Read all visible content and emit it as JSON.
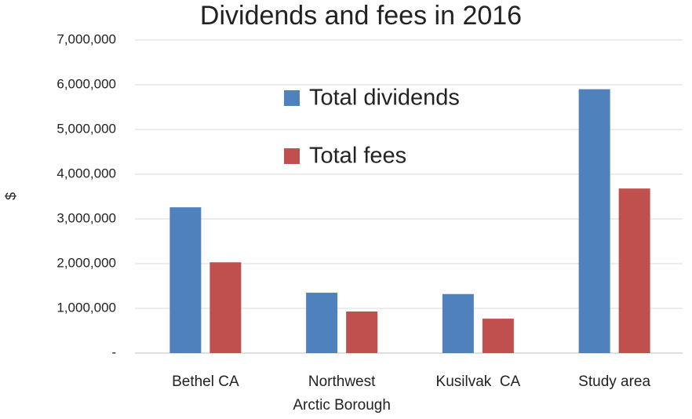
{
  "chart_data": {
    "type": "bar",
    "title": "Dividends and fees in 2016",
    "y_label": "$",
    "categories": [
      "Bethel CA",
      "Northwest Arctic Borough",
      "Kusilvak  CA",
      "Study area"
    ],
    "series": [
      {
        "name": "Total dividends",
        "color": "#4f81bd",
        "values": [
          3260000,
          1350000,
          1320000,
          5900000
        ]
      },
      {
        "name": "Total fees",
        "color": "#c0504d",
        "values": [
          2030000,
          930000,
          770000,
          3680000
        ]
      }
    ],
    "ylim": [
      0,
      7000000
    ],
    "yticks": [
      {
        "value": 0,
        "label": "-"
      },
      {
        "value": 1000000,
        "label": "1,000,000"
      },
      {
        "value": 2000000,
        "label": "2,000,000"
      },
      {
        "value": 3000000,
        "label": "3,000,000"
      },
      {
        "value": 4000000,
        "label": "4,000,000"
      },
      {
        "value": 5000000,
        "label": "5,000,000"
      },
      {
        "value": 6000000,
        "label": "6,000,000"
      },
      {
        "value": 7000000,
        "label": "7,000,000"
      }
    ],
    "grid": true,
    "legend_position": "upper-center"
  }
}
